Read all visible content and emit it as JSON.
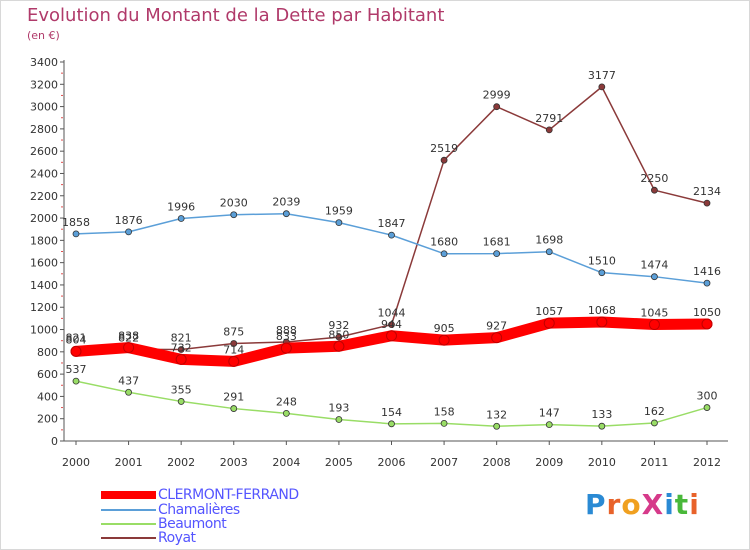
{
  "title": "Evolution du Montant de la Dette par Habitant",
  "subtitle": "(en €)",
  "logo": {
    "text": "ProXiti",
    "letter_colors": [
      "#2a8ad4",
      "#e8622a",
      "#f0a020",
      "#d63a8a",
      "#2a8ad4",
      "#49b83a",
      "#e8622a"
    ]
  },
  "chart_data": {
    "type": "line",
    "title": "Evolution du Montant de la Dette par Habitant",
    "subtitle": "(en €)",
    "x": [
      "2000",
      "2001",
      "2002",
      "2003",
      "2004",
      "2005",
      "2006",
      "2007",
      "2008",
      "2009",
      "2010",
      "2011",
      "2012"
    ],
    "ylim": [
      0,
      3400
    ],
    "yticks": [
      "0",
      "200",
      "400",
      "600",
      "800",
      "1000",
      "1200",
      "1400",
      "1600",
      "1800",
      "2000",
      "2200",
      "2400",
      "2600",
      "2800",
      "3000",
      "3200",
      "3400"
    ],
    "grid": false,
    "legend_position": "bottom-left",
    "series": [
      {
        "name": "CLERMONT-FERRAND",
        "color": "#ff0000",
        "values": [
          804,
          838,
          732,
          714,
          833,
          850,
          944,
          905,
          927,
          1057,
          1068,
          1045,
          1050
        ],
        "labels": [
          "804",
          "838",
          "732",
          "714",
          "833",
          "850",
          "944",
          "905",
          "927",
          "1057",
          "1068",
          "1045",
          "1050"
        ]
      },
      {
        "name": "Chamalières",
        "color": "#5b9fd8",
        "values": [
          1858,
          1876,
          1996,
          2030,
          2039,
          1959,
          1847,
          1680,
          1681,
          1698,
          1510,
          1474,
          1416
        ],
        "labels": [
          "1858",
          "1876",
          "1996",
          "2030",
          "2039",
          "1959",
          "1847",
          "1680",
          "1681",
          "1698",
          "1510",
          "1474",
          "1416"
        ]
      },
      {
        "name": "Beaumont",
        "color": "#99dd66",
        "values": [
          537,
          437,
          355,
          291,
          248,
          193,
          154,
          158,
          132,
          147,
          133,
          162,
          300
        ],
        "labels": [
          "537",
          "437",
          "355",
          "291",
          "248",
          "193",
          "154",
          "158",
          "132",
          "147",
          "133",
          "162",
          "300"
        ]
      },
      {
        "name": "Royat",
        "color": "#8b3a3a",
        "values": [
          821,
          822,
          821,
          875,
          888,
          932,
          1044,
          2519,
          2999,
          2791,
          3177,
          2250,
          2134
        ],
        "labels": [
          "821",
          "822",
          "821",
          "875",
          "888",
          "932",
          "1044",
          "2519",
          "2999",
          "2791",
          "3177",
          "2250",
          "2134"
        ]
      }
    ]
  }
}
